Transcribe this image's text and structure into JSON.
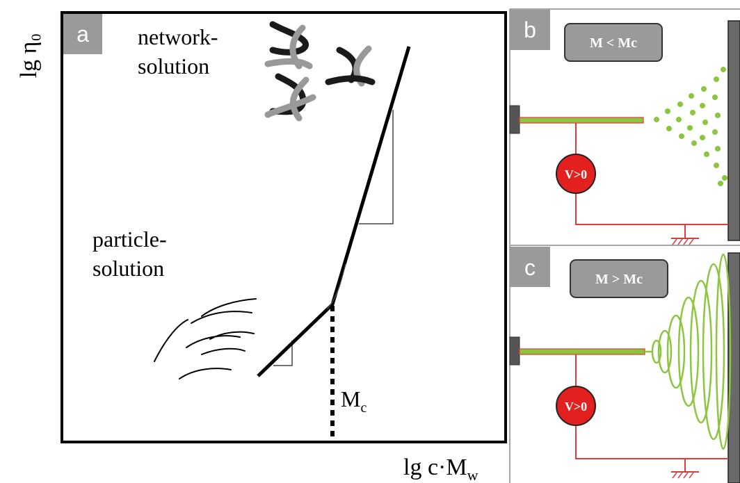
{
  "panel_a": {
    "letter": "a",
    "y_axis_label": "lg η₀",
    "x_axis_label": "lg c·Mw",
    "network_label": [
      "network-",
      "solution"
    ],
    "particle_label": [
      "particle-",
      "solution"
    ],
    "mc_label": "Mc"
  },
  "panel_b": {
    "letter": "b",
    "condition": "M < Mc",
    "voltage": "V>0"
  },
  "panel_c": {
    "letter": "c",
    "condition": "M > Mc",
    "voltage": "V>0"
  },
  "colors": {
    "letter_box": "#9a9a9a",
    "condition_box": "#9a9a9a",
    "voltage_fill": "#e32020",
    "circuit": "#e03a3a",
    "spray": "#8cc63f",
    "electrode": "#555555"
  }
}
